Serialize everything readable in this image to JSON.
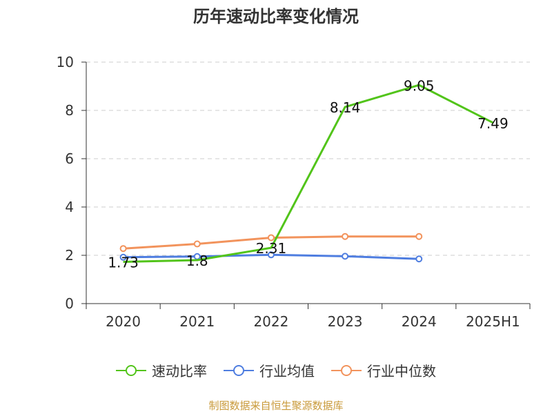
{
  "chart_data": {
    "type": "line",
    "title": "历年速动比率变化情况",
    "categories": [
      "2020",
      "2021",
      "2022",
      "2023",
      "2024",
      "2025H1"
    ],
    "ylim": [
      0,
      10
    ],
    "yticks": [
      "0",
      "2",
      "4",
      "6",
      "8",
      "10"
    ],
    "grid": true,
    "legend_position": "bottom",
    "series": [
      {
        "name": "速动比率",
        "color": "#52c41a",
        "values": [
          1.73,
          1.8,
          2.31,
          8.14,
          9.05,
          7.49
        ],
        "labels": [
          "1.73",
          "1.8",
          "2.31",
          "8.14",
          "9.05",
          "7.49"
        ]
      },
      {
        "name": "行业均值",
        "color": "#4e7de0",
        "values": [
          1.92,
          1.95,
          2.02,
          1.96,
          1.85,
          null
        ]
      },
      {
        "name": "行业中位数",
        "color": "#f2935c",
        "values": [
          2.28,
          2.47,
          2.73,
          2.78,
          2.78,
          null
        ]
      }
    ]
  },
  "source": "制图数据来自恒生聚源数据库"
}
